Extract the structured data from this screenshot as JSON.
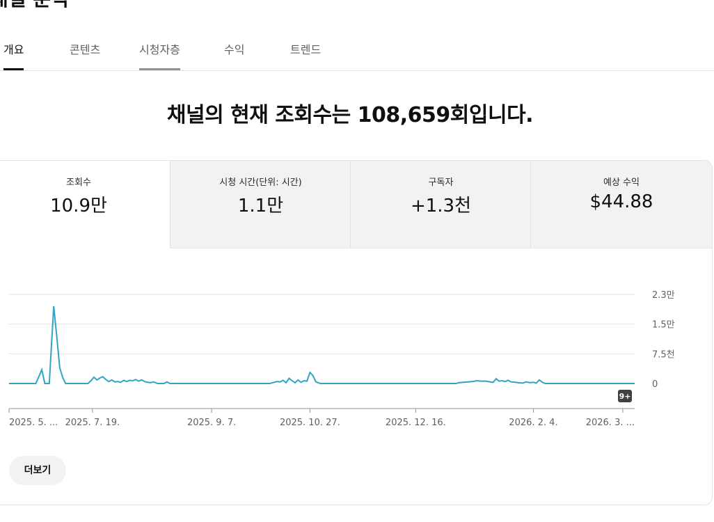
{
  "page": {
    "title": "채널 분석"
  },
  "tabs": [
    "개요",
    "콘텐츠",
    "시청자층",
    "수익",
    "트렌드"
  ],
  "headline": "채널의 현재 조회수는 108,659회입니다.",
  "metrics": [
    {
      "label": "조회수",
      "value": "10.9만"
    },
    {
      "label": "시청 시간(단위: 시간)",
      "value": "1.1만"
    },
    {
      "label": "구독자",
      "value": "+1.3천"
    },
    {
      "label": "예상 수익",
      "value": "$44.88"
    }
  ],
  "chart_data": {
    "type": "line",
    "series": [
      {
        "values": [
          [
            0,
            0
          ],
          [
            10,
            0
          ],
          [
            18,
            0
          ],
          [
            22,
            3500
          ],
          [
            24,
            0
          ],
          [
            27,
            0
          ],
          [
            30,
            19500
          ],
          [
            32,
            12000
          ],
          [
            34,
            4000
          ],
          [
            36,
            1500
          ],
          [
            38,
            0
          ],
          [
            45,
            0
          ],
          [
            50,
            0
          ],
          [
            53,
            0
          ],
          [
            55,
            700
          ],
          [
            57,
            1600
          ],
          [
            59,
            900
          ],
          [
            61,
            1400
          ],
          [
            63,
            1700
          ],
          [
            65,
            1000
          ],
          [
            67,
            500
          ],
          [
            69,
            900
          ],
          [
            71,
            400
          ],
          [
            73,
            500
          ],
          [
            75,
            300
          ],
          [
            77,
            800
          ],
          [
            79,
            500
          ],
          [
            81,
            800
          ],
          [
            83,
            700
          ],
          [
            85,
            1000
          ],
          [
            87,
            600
          ],
          [
            89,
            900
          ],
          [
            91,
            500
          ],
          [
            93,
            300
          ],
          [
            95,
            200
          ],
          [
            97,
            400
          ],
          [
            99,
            100
          ],
          [
            100,
            0
          ],
          [
            104,
            0
          ],
          [
            106,
            400
          ],
          [
            108,
            0
          ],
          [
            120,
            0
          ],
          [
            150,
            0
          ],
          [
            175,
            0
          ],
          [
            178,
            300
          ],
          [
            180,
            500
          ],
          [
            182,
            400
          ],
          [
            184,
            800
          ],
          [
            186,
            200
          ],
          [
            188,
            1300
          ],
          [
            190,
            700
          ],
          [
            192,
            200
          ],
          [
            194,
            900
          ],
          [
            196,
            300
          ],
          [
            198,
            700
          ],
          [
            200,
            600
          ],
          [
            202,
            2800
          ],
          [
            204,
            2000
          ],
          [
            206,
            400
          ],
          [
            209,
            0
          ],
          [
            240,
            0
          ],
          [
            280,
            0
          ],
          [
            300,
            0
          ],
          [
            302,
            200
          ],
          [
            305,
            300
          ],
          [
            308,
            400
          ],
          [
            311,
            500
          ],
          [
            314,
            700
          ],
          [
            317,
            600
          ],
          [
            320,
            600
          ],
          [
            323,
            400
          ],
          [
            325,
            300
          ],
          [
            327,
            1200
          ],
          [
            329,
            600
          ],
          [
            331,
            700
          ],
          [
            333,
            500
          ],
          [
            335,
            800
          ],
          [
            337,
            400
          ],
          [
            340,
            300
          ],
          [
            342,
            200
          ],
          [
            345,
            100
          ],
          [
            347,
            400
          ],
          [
            350,
            200
          ],
          [
            352,
            300
          ],
          [
            354,
            100
          ],
          [
            356,
            900
          ],
          [
            358,
            300
          ],
          [
            360,
            0
          ],
          [
            380,
            0
          ],
          [
            400,
            0
          ],
          [
            420,
            0
          ]
        ]
      }
    ],
    "x_axis": {
      "tick_labels": [
        "2025. 5. ...",
        "2025. 7. 19.",
        "2025. 9. 7.",
        "2025. 10. 27.",
        "2025. 12. 16.",
        "2026. 2. 4.",
        "2026. 3. ..."
      ],
      "tick_positions": [
        0,
        56,
        136,
        202,
        273,
        352,
        412
      ],
      "range": [
        0,
        420
      ]
    },
    "y_axis": {
      "tick_labels": [
        "2.3만",
        "1.5만",
        "7.5천",
        "0"
      ],
      "tick_values": [
        22500,
        15000,
        7500,
        0
      ],
      "range": [
        0,
        22500
      ]
    },
    "badge": "9+",
    "grid": true,
    "color": "#2fa4c4"
  },
  "more_button": "더보기"
}
